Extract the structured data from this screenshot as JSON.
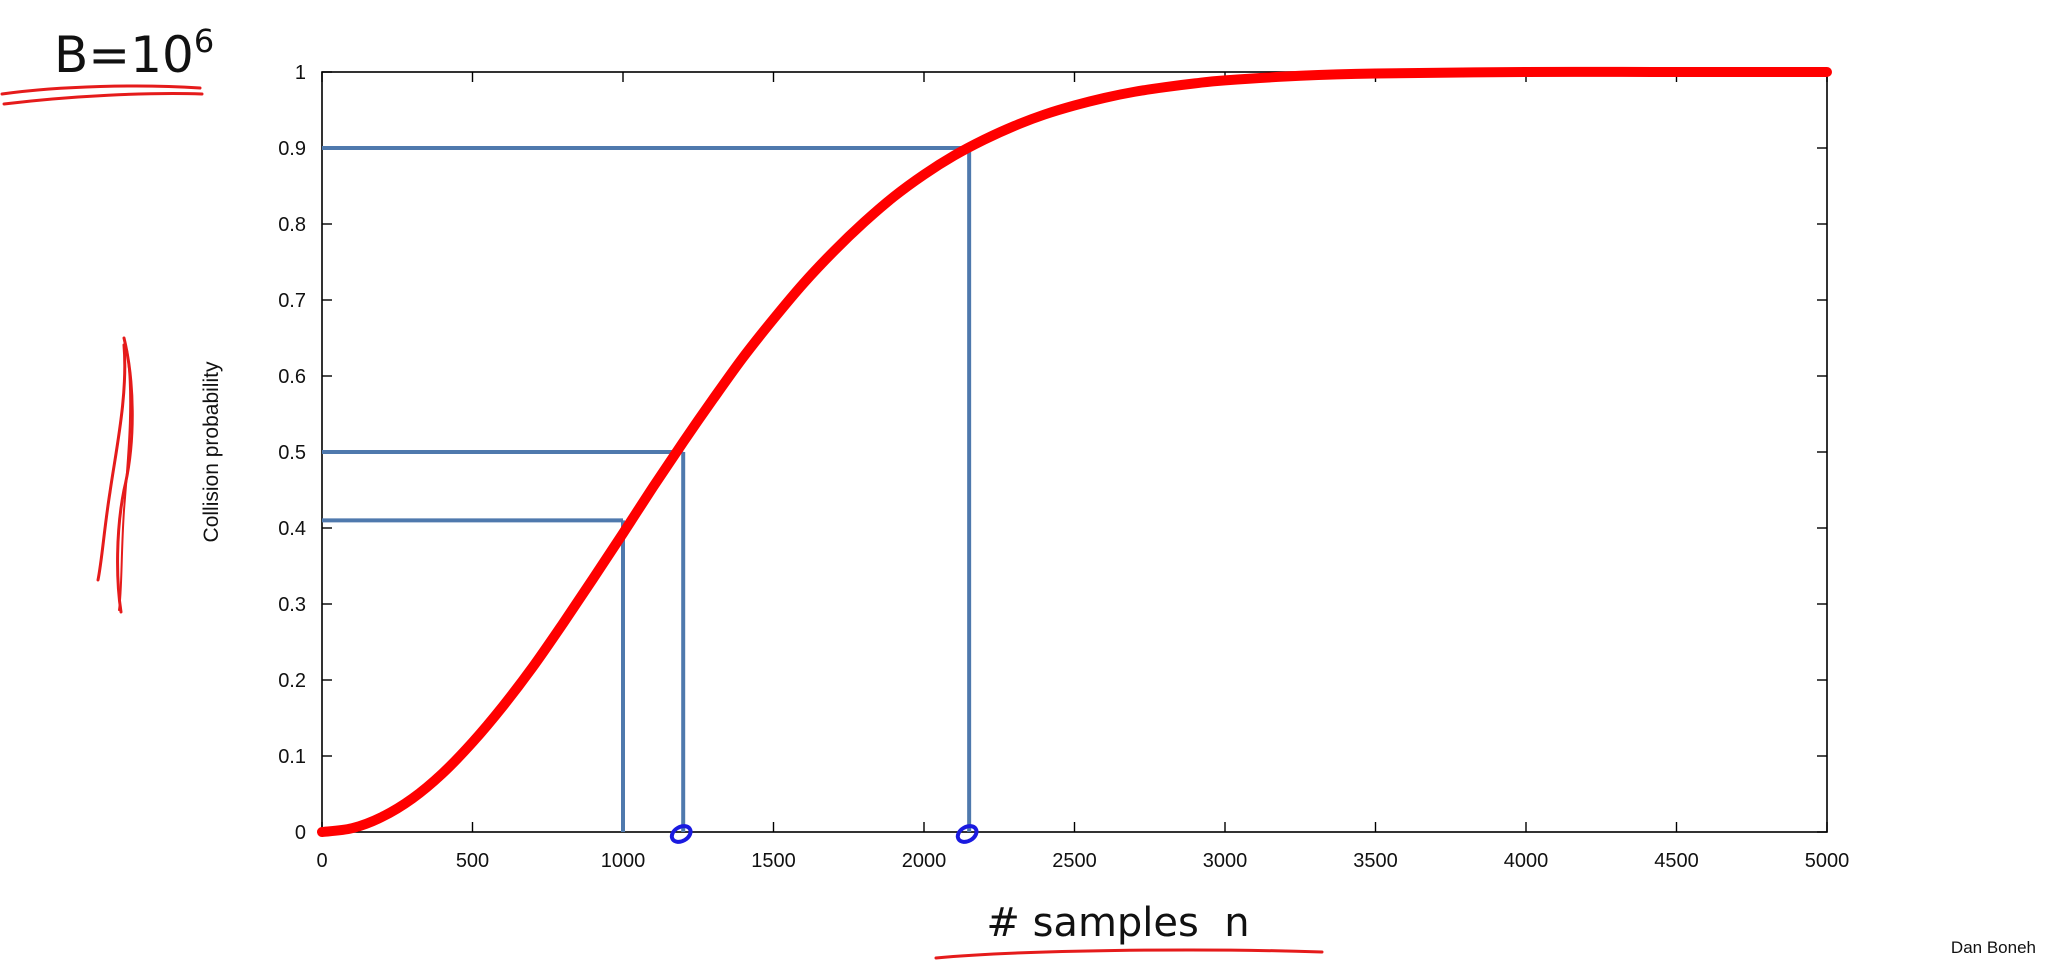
{
  "budget": {
    "base": "B=10",
    "exponent": "6"
  },
  "credit": "Dan Boneh",
  "colors": {
    "curve": "#ff0000",
    "guides": "#4f79ad",
    "ink_red": "#e51b1b",
    "ink_blue": "#1a1ae0",
    "axis": "#000000"
  },
  "chart_data": {
    "type": "line",
    "title": "",
    "xlabel": "# samples  n",
    "ylabel": "Collision probability",
    "xlim": [
      0,
      5000
    ],
    "ylim": [
      0,
      1
    ],
    "x_ticks": [
      0,
      500,
      1000,
      1500,
      2000,
      2500,
      3000,
      3500,
      4000,
      4500,
      5000
    ],
    "y_ticks": [
      0,
      0.1,
      0.2,
      0.3,
      0.4,
      0.5,
      0.6,
      0.7,
      0.8,
      0.9,
      1
    ],
    "x_tick_labels": [
      "0",
      "500",
      "1000",
      "1500",
      "2000",
      "2500",
      "3000",
      "3500",
      "4000",
      "4500",
      "5000"
    ],
    "y_tick_labels": [
      "0",
      "0.1",
      "0.2",
      "0.3",
      "0.4",
      "0.5",
      "0.6",
      "0.7",
      "0.8",
      "0.9",
      "1"
    ],
    "grid": false,
    "series": [
      {
        "x": [
          0,
          100,
          200,
          300,
          400,
          500,
          600,
          700,
          800,
          900,
          1000,
          1100,
          1200,
          1300,
          1400,
          1500,
          1600,
          1700,
          1800,
          1900,
          2000,
          2100,
          2200,
          2300,
          2400,
          2500,
          2600,
          2700,
          2800,
          2900,
          3000,
          3250,
          3500,
          4000,
          4500,
          5000
        ],
        "y": [
          0,
          0.005,
          0.02,
          0.044,
          0.077,
          0.118,
          0.165,
          0.217,
          0.274,
          0.333,
          0.393,
          0.454,
          0.513,
          0.57,
          0.625,
          0.675,
          0.722,
          0.764,
          0.802,
          0.836,
          0.865,
          0.89,
          0.911,
          0.929,
          0.944,
          0.956,
          0.966,
          0.974,
          0.98,
          0.985,
          0.989,
          0.995,
          0.998,
          1.0,
          1.0,
          1.0
        ]
      }
    ],
    "reference_points": [
      {
        "x": 1000,
        "y": 0.41
      },
      {
        "x": 1200,
        "y": 0.5
      },
      {
        "x": 2150,
        "y": 0.9
      }
    ]
  }
}
